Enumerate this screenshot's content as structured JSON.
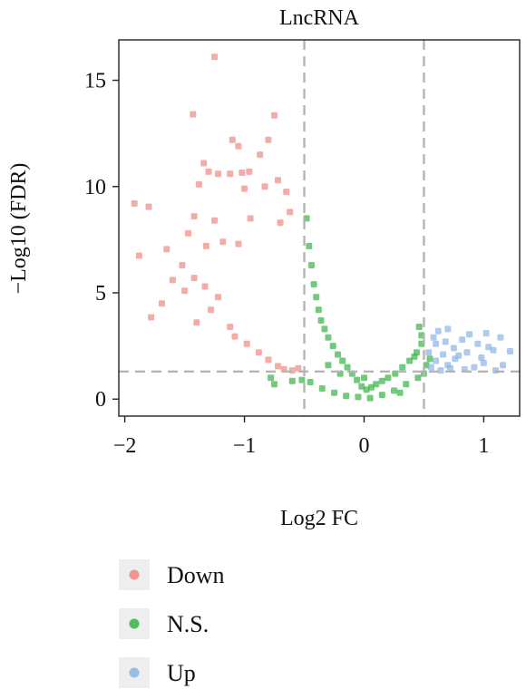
{
  "chart_data": {
    "type": "scatter",
    "title": "LncRNA",
    "xlabel": "Log2 FC",
    "ylabel": "−Log10 (FDR)",
    "xlim": [
      -2.05,
      1.3
    ],
    "ylim": [
      -0.8,
      16.9
    ],
    "xticks": [
      {
        "value": -2,
        "label": "−2"
      },
      {
        "value": -1,
        "label": "−1"
      },
      {
        "value": 0,
        "label": "0"
      },
      {
        "value": 1,
        "label": "1"
      }
    ],
    "yticks": [
      {
        "value": 0,
        "label": "0"
      },
      {
        "value": 5,
        "label": "5"
      },
      {
        "value": 10,
        "label": "10"
      },
      {
        "value": 15,
        "label": "15"
      }
    ],
    "reference_lines": {
      "vertical": [
        -0.5,
        0.5
      ],
      "horizontal": [
        1.3
      ]
    },
    "grid": false,
    "legend_position": "bottom-left",
    "series": [
      {
        "name": "Down",
        "color": "#f08c84",
        "points": [
          [
            -1.25,
            16.1
          ],
          [
            -1.43,
            13.4
          ],
          [
            -0.75,
            13.35
          ],
          [
            -0.8,
            12.2
          ],
          [
            -1.1,
            12.2
          ],
          [
            -1.05,
            11.9
          ],
          [
            -0.87,
            11.5
          ],
          [
            -1.34,
            11.1
          ],
          [
            -1.3,
            10.7
          ],
          [
            -1.12,
            10.6
          ],
          [
            -1.22,
            10.6
          ],
          [
            -1.02,
            10.65
          ],
          [
            -0.96,
            10.7
          ],
          [
            -0.72,
            10.3
          ],
          [
            -0.83,
            10.0
          ],
          [
            -1.0,
            9.9
          ],
          [
            -1.38,
            10.1
          ],
          [
            -0.65,
            9.75
          ],
          [
            -1.92,
            9.2
          ],
          [
            -1.8,
            9.05
          ],
          [
            -1.42,
            8.6
          ],
          [
            -1.25,
            8.4
          ],
          [
            -0.95,
            8.5
          ],
          [
            -0.62,
            8.8
          ],
          [
            -0.7,
            8.3
          ],
          [
            -1.47,
            7.8
          ],
          [
            -1.65,
            7.05
          ],
          [
            -1.88,
            6.75
          ],
          [
            -1.32,
            7.2
          ],
          [
            -1.18,
            7.4
          ],
          [
            -1.05,
            7.3
          ],
          [
            -1.52,
            6.3
          ],
          [
            -1.6,
            5.6
          ],
          [
            -1.69,
            4.5
          ],
          [
            -1.78,
            3.85
          ],
          [
            -1.5,
            5.1
          ],
          [
            -1.42,
            5.7
          ],
          [
            -1.33,
            5.3
          ],
          [
            -1.22,
            4.8
          ],
          [
            -1.28,
            4.2
          ],
          [
            -1.4,
            3.6
          ],
          [
            -1.12,
            3.4
          ],
          [
            -1.08,
            2.95
          ],
          [
            -0.98,
            2.6
          ],
          [
            -0.88,
            2.2
          ],
          [
            -0.8,
            1.85
          ],
          [
            -0.72,
            1.55
          ],
          [
            -0.67,
            1.4
          ],
          [
            -0.6,
            1.35
          ],
          [
            -0.55,
            1.45
          ]
        ]
      },
      {
        "name": "N.S.",
        "color": "#3db54a",
        "points": [
          [
            -0.48,
            8.5
          ],
          [
            -0.46,
            7.2
          ],
          [
            -0.44,
            6.3
          ],
          [
            -0.42,
            5.4
          ],
          [
            -0.4,
            4.8
          ],
          [
            -0.38,
            4.2
          ],
          [
            -0.36,
            3.7
          ],
          [
            -0.33,
            3.3
          ],
          [
            -0.3,
            2.9
          ],
          [
            -0.26,
            2.5
          ],
          [
            -0.22,
            2.1
          ],
          [
            -0.18,
            1.8
          ],
          [
            -0.14,
            1.5
          ],
          [
            -0.1,
            1.2
          ],
          [
            -0.06,
            0.9
          ],
          [
            -0.02,
            0.6
          ],
          [
            0.02,
            0.45
          ],
          [
            0.06,
            0.55
          ],
          [
            0.1,
            0.7
          ],
          [
            0.15,
            0.85
          ],
          [
            0.2,
            1.0
          ],
          [
            0.26,
            1.2
          ],
          [
            0.32,
            1.5
          ],
          [
            0.38,
            1.8
          ],
          [
            0.44,
            2.2
          ],
          [
            0.48,
            2.6
          ],
          [
            -0.45,
            0.8
          ],
          [
            -0.6,
            0.85
          ],
          [
            -0.75,
            0.7
          ],
          [
            -0.78,
            1.0
          ],
          [
            -0.52,
            0.9
          ],
          [
            -0.35,
            0.5
          ],
          [
            -0.25,
            0.3
          ],
          [
            -0.15,
            0.15
          ],
          [
            -0.05,
            0.1
          ],
          [
            0.05,
            0.05
          ],
          [
            0.15,
            0.2
          ],
          [
            0.25,
            0.4
          ],
          [
            0.35,
            0.7
          ],
          [
            0.45,
            1.0
          ],
          [
            0.5,
            1.2
          ],
          [
            0.52,
            1.6
          ],
          [
            0.55,
            1.9
          ],
          [
            0.48,
            3.0
          ],
          [
            0.46,
            3.4
          ],
          [
            0.42,
            2.0
          ],
          [
            -0.3,
            1.6
          ],
          [
            -0.2,
            1.2
          ],
          [
            0.0,
            1.0
          ],
          [
            0.3,
            0.3
          ]
        ]
      },
      {
        "name": "Up",
        "color": "#8fb6e6",
        "points": [
          [
            0.58,
            2.9
          ],
          [
            0.62,
            3.2
          ],
          [
            0.68,
            2.7
          ],
          [
            0.75,
            2.4
          ],
          [
            0.82,
            2.8
          ],
          [
            0.88,
            3.05
          ],
          [
            0.95,
            2.6
          ],
          [
            1.02,
            3.1
          ],
          [
            1.08,
            2.3
          ],
          [
            1.14,
            2.9
          ],
          [
            0.56,
            1.5
          ],
          [
            0.6,
            1.8
          ],
          [
            0.64,
            1.35
          ],
          [
            0.7,
            1.6
          ],
          [
            0.76,
            1.9
          ],
          [
            0.84,
            1.4
          ],
          [
            0.92,
            1.5
          ],
          [
            1.0,
            1.7
          ],
          [
            1.1,
            1.35
          ],
          [
            1.22,
            2.25
          ],
          [
            0.66,
            2.1
          ],
          [
            0.72,
            1.45
          ],
          [
            0.79,
            2.05
          ],
          [
            0.86,
            2.2
          ],
          [
            0.98,
            1.95
          ],
          [
            1.04,
            2.45
          ],
          [
            1.16,
            1.6
          ],
          [
            0.54,
            2.2
          ],
          [
            0.6,
            2.6
          ],
          [
            0.7,
            3.3
          ]
        ]
      }
    ]
  }
}
